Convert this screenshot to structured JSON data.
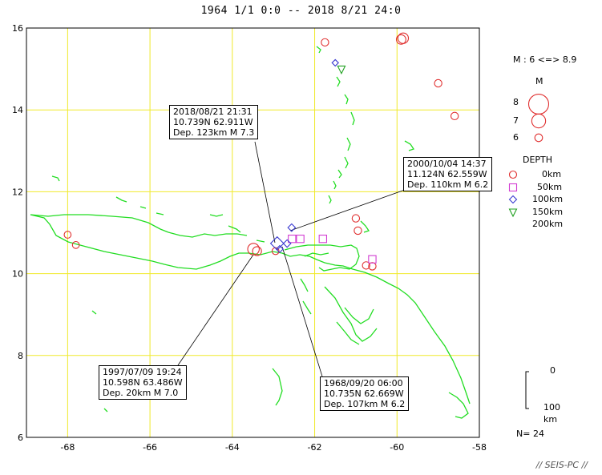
{
  "title": "1964 1/1 0:0 -- 2018 8/21 24:0",
  "map": {
    "lon_range": [
      -69,
      -58
    ],
    "lat_range": [
      6,
      16
    ],
    "x_ticks": [
      -68,
      -66,
      -64,
      -62,
      -60,
      -58
    ],
    "y_ticks": [
      6,
      8,
      10,
      12,
      14,
      16
    ],
    "grid_color": "#f0ea2a",
    "coast_color": "#22dd22"
  },
  "legend": {
    "magnitude_range": "M : 6 <=> 8.9",
    "magnitude_title": "M",
    "magnitudes": [
      8,
      7,
      6
    ],
    "depth_title": "DEPTH",
    "depths": [
      {
        "label": "0km",
        "symbol": "circle",
        "color": "#e03030"
      },
      {
        "label": "50km",
        "symbol": "square",
        "color": "#d23cd2"
      },
      {
        "label": "100km",
        "symbol": "diamond",
        "color": "#3a3ad0"
      },
      {
        "label": "150km",
        "symbol": "triangle",
        "color": "#20a020"
      },
      {
        "label": "200km",
        "symbol": "none",
        "color": "#000000"
      }
    ],
    "depth_scale": {
      "top": "0",
      "bottom": "100",
      "unit": "km"
    },
    "count": "N= 24"
  },
  "callouts": [
    {
      "line1": "2018/08/21 21:31",
      "line2": "10.739N  62.911W",
      "line3": "Dep. 123km   M 7.3"
    },
    {
      "line1": "2000/10/04 14:37",
      "line2": "11.124N  62.559W",
      "line3": "Dep. 110km   M 6.2"
    },
    {
      "line1": "1997/07/09 19:24",
      "line2": "10.598N  63.486W",
      "line3": "Dep. 20km    M 7.0"
    },
    {
      "line1": "1968/09/20 06:00",
      "line2": "10.735N  62.669W",
      "line3": "Dep. 107km   M 6.2"
    }
  ],
  "events": [
    {
      "lon": -59.85,
      "lat": 15.75,
      "depth": "shallow",
      "m": 6.8
    },
    {
      "lon": -59.9,
      "lat": 15.72,
      "depth": "shallow",
      "m": 6.6
    },
    {
      "lon": -61.75,
      "lat": 15.65,
      "depth": "shallow",
      "m": 6.2
    },
    {
      "lon": -59.0,
      "lat": 14.65,
      "depth": "shallow",
      "m": 6.2
    },
    {
      "lon": -58.6,
      "lat": 13.85,
      "depth": "shallow",
      "m": 6.2
    },
    {
      "lon": -61.5,
      "lat": 15.15,
      "depth": "mid",
      "m": 6.0
    },
    {
      "lon": -61.35,
      "lat": 14.98,
      "depth": "deep",
      "m": 6.2
    },
    {
      "lon": -68.0,
      "lat": 10.95,
      "depth": "shallow",
      "m": 6.1
    },
    {
      "lon": -67.8,
      "lat": 10.7,
      "depth": "shallow",
      "m": 6.1
    },
    {
      "lon": -61.0,
      "lat": 11.35,
      "depth": "shallow",
      "m": 6.2
    },
    {
      "lon": -60.95,
      "lat": 11.05,
      "depth": "shallow",
      "m": 6.2
    },
    {
      "lon": -60.75,
      "lat": 10.2,
      "depth": "shallow",
      "m": 6.2
    },
    {
      "lon": -60.6,
      "lat": 10.18,
      "depth": "shallow",
      "m": 6.2
    },
    {
      "lon": -63.4,
      "lat": 10.55,
      "depth": "shallow",
      "m": 6.5
    },
    {
      "lon": -63.486,
      "lat": 10.598,
      "depth": "shallow",
      "m": 7.0
    },
    {
      "lon": -62.95,
      "lat": 10.55,
      "depth": "shallow",
      "m": 6.1
    },
    {
      "lon": -62.55,
      "lat": 10.85,
      "depth": "inter",
      "m": 6.2
    },
    {
      "lon": -62.35,
      "lat": 10.85,
      "depth": "inter",
      "m": 6.2
    },
    {
      "lon": -61.8,
      "lat": 10.85,
      "depth": "inter",
      "m": 6.2
    },
    {
      "lon": -60.6,
      "lat": 10.35,
      "depth": "inter",
      "m": 6.2
    },
    {
      "lon": -62.911,
      "lat": 10.739,
      "depth": "mid",
      "m": 7.3
    },
    {
      "lon": -62.559,
      "lat": 11.124,
      "depth": "mid",
      "m": 6.2
    },
    {
      "lon": -62.669,
      "lat": 10.735,
      "depth": "mid",
      "m": 6.2
    },
    {
      "lon": -62.85,
      "lat": 10.6,
      "depth": "mid",
      "m": 6.1
    }
  ],
  "credit": "// SEIS-PC //"
}
